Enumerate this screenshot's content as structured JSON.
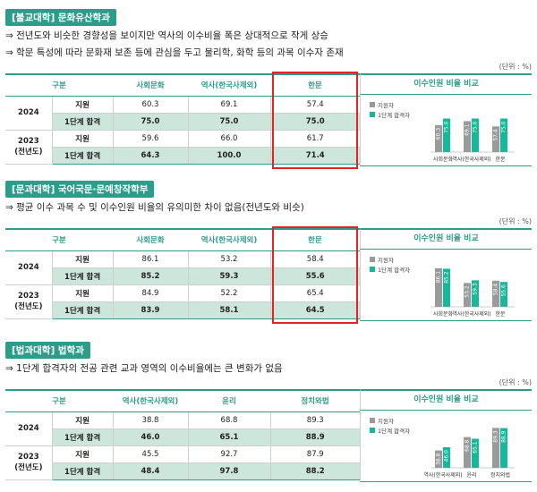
{
  "colors": {
    "accent": "#2e9c8a",
    "applicant": "#9a9a9a",
    "passer": "#14b89a",
    "highlight": "#e32222"
  },
  "sections": [
    {
      "badge": "[불교대학] 문화유산학과",
      "bullets": [
        "⇒ 전년도와 비슷한 경향성을 보이지만 역사의 이수비율 폭은 상대적으로 작게 상승",
        "⇒ 학문 특성에 따라 문화재 보존 등에 관심을 두고 물리학, 화학 등의 과목 이수자 존재"
      ],
      "unit": "(단위 : %)",
      "headers": [
        "구분",
        "사회문화",
        "역사(한국사제외)",
        "한문",
        "이수인원 비율 비교"
      ],
      "rows": [
        {
          "year": "2024",
          "label": "지원",
          "values": [
            "60.3",
            "69.1",
            "57.4"
          ]
        },
        {
          "year": "",
          "label": "1단계 합격",
          "values": [
            "75.0",
            "75.0",
            "75.0"
          ]
        },
        {
          "year": "2023\n(전년도)",
          "label": "지원",
          "values": [
            "59.6",
            "66.0",
            "61.7"
          ]
        },
        {
          "year": "",
          "label": "1단계 합격",
          "values": [
            "64.3",
            "100.0",
            "71.4"
          ]
        }
      ],
      "highlight_col": 3,
      "legend": [
        "지원자",
        "1단계 합격자"
      ],
      "chart_data": {
        "type": "bar",
        "categories": [
          "사회문화",
          "역사(한국사제외)",
          "한문"
        ],
        "series": [
          {
            "name": "지원자",
            "values": [
              60.3,
              69.1,
              57.4
            ]
          },
          {
            "name": "1단계 합격자",
            "values": [
              75.0,
              75.0,
              75.0
            ]
          }
        ],
        "ylim": [
          0,
          100
        ]
      }
    },
    {
      "badge": "[문과대학] 국어국문·문예창작학부",
      "bullets": [
        "⇒ 평균 이수 과목 수 및 이수인원 비율의 유의미한 차이 없음(전년도와 비슷)"
      ],
      "unit": "(단위 : %)",
      "headers": [
        "구분",
        "사회문화",
        "역사(한국사제외)",
        "한문",
        "이수인원 비율 비교"
      ],
      "rows": [
        {
          "year": "2024",
          "label": "지원",
          "values": [
            "86.1",
            "53.2",
            "58.4"
          ]
        },
        {
          "year": "",
          "label": "1단계 합격",
          "values": [
            "85.2",
            "59.3",
            "55.6"
          ]
        },
        {
          "year": "2023\n(전년도)",
          "label": "지원",
          "values": [
            "84.9",
            "52.2",
            "65.4"
          ]
        },
        {
          "year": "",
          "label": "1단계 합격",
          "values": [
            "83.9",
            "58.1",
            "64.5"
          ]
        }
      ],
      "highlight_col": 3,
      "legend": [
        "지원자",
        "1단계 합격자"
      ],
      "chart_data": {
        "type": "bar",
        "categories": [
          "사회문화",
          "역사(한국사제외)",
          "한문"
        ],
        "series": [
          {
            "name": "지원자",
            "values": [
              86.1,
              53.2,
              58.4
            ]
          },
          {
            "name": "1단계 합격자",
            "values": [
              85.2,
              59.3,
              55.6
            ]
          }
        ],
        "ylim": [
          0,
          100
        ]
      }
    },
    {
      "badge": "[법과대학] 법학과",
      "bullets": [
        "⇒ 1단계 합격자의 전공 관련 교과 영역의 이수비율에는 큰 변화가 없음"
      ],
      "unit": "(단위 : %)",
      "headers": [
        "구분",
        "역사(한국사제외)",
        "윤리",
        "정치와법",
        "이수인원 비율 비교"
      ],
      "rows": [
        {
          "year": "2024",
          "label": "지원",
          "values": [
            "38.8",
            "68.8",
            "89.3"
          ]
        },
        {
          "year": "",
          "label": "1단계 합격",
          "values": [
            "46.0",
            "65.1",
            "88.9"
          ]
        },
        {
          "year": "2023\n(전년도)",
          "label": "지원",
          "values": [
            "45.5",
            "92.7",
            "87.9"
          ]
        },
        {
          "year": "",
          "label": "1단계 합격",
          "values": [
            "48.4",
            "97.8",
            "88.2"
          ]
        }
      ],
      "highlight_col": null,
      "legend": [
        "지원자",
        "1단계 합격자"
      ],
      "chart_data": {
        "type": "bar",
        "categories": [
          "역사(한국사제외)",
          "윤리",
          "정치와법"
        ],
        "series": [
          {
            "name": "지원자",
            "values": [
              38.8,
              68.8,
              89.3
            ]
          },
          {
            "name": "1단계 합격자",
            "values": [
              46.0,
              65.1,
              88.9
            ]
          }
        ],
        "ylim": [
          0,
          100
        ]
      }
    }
  ]
}
